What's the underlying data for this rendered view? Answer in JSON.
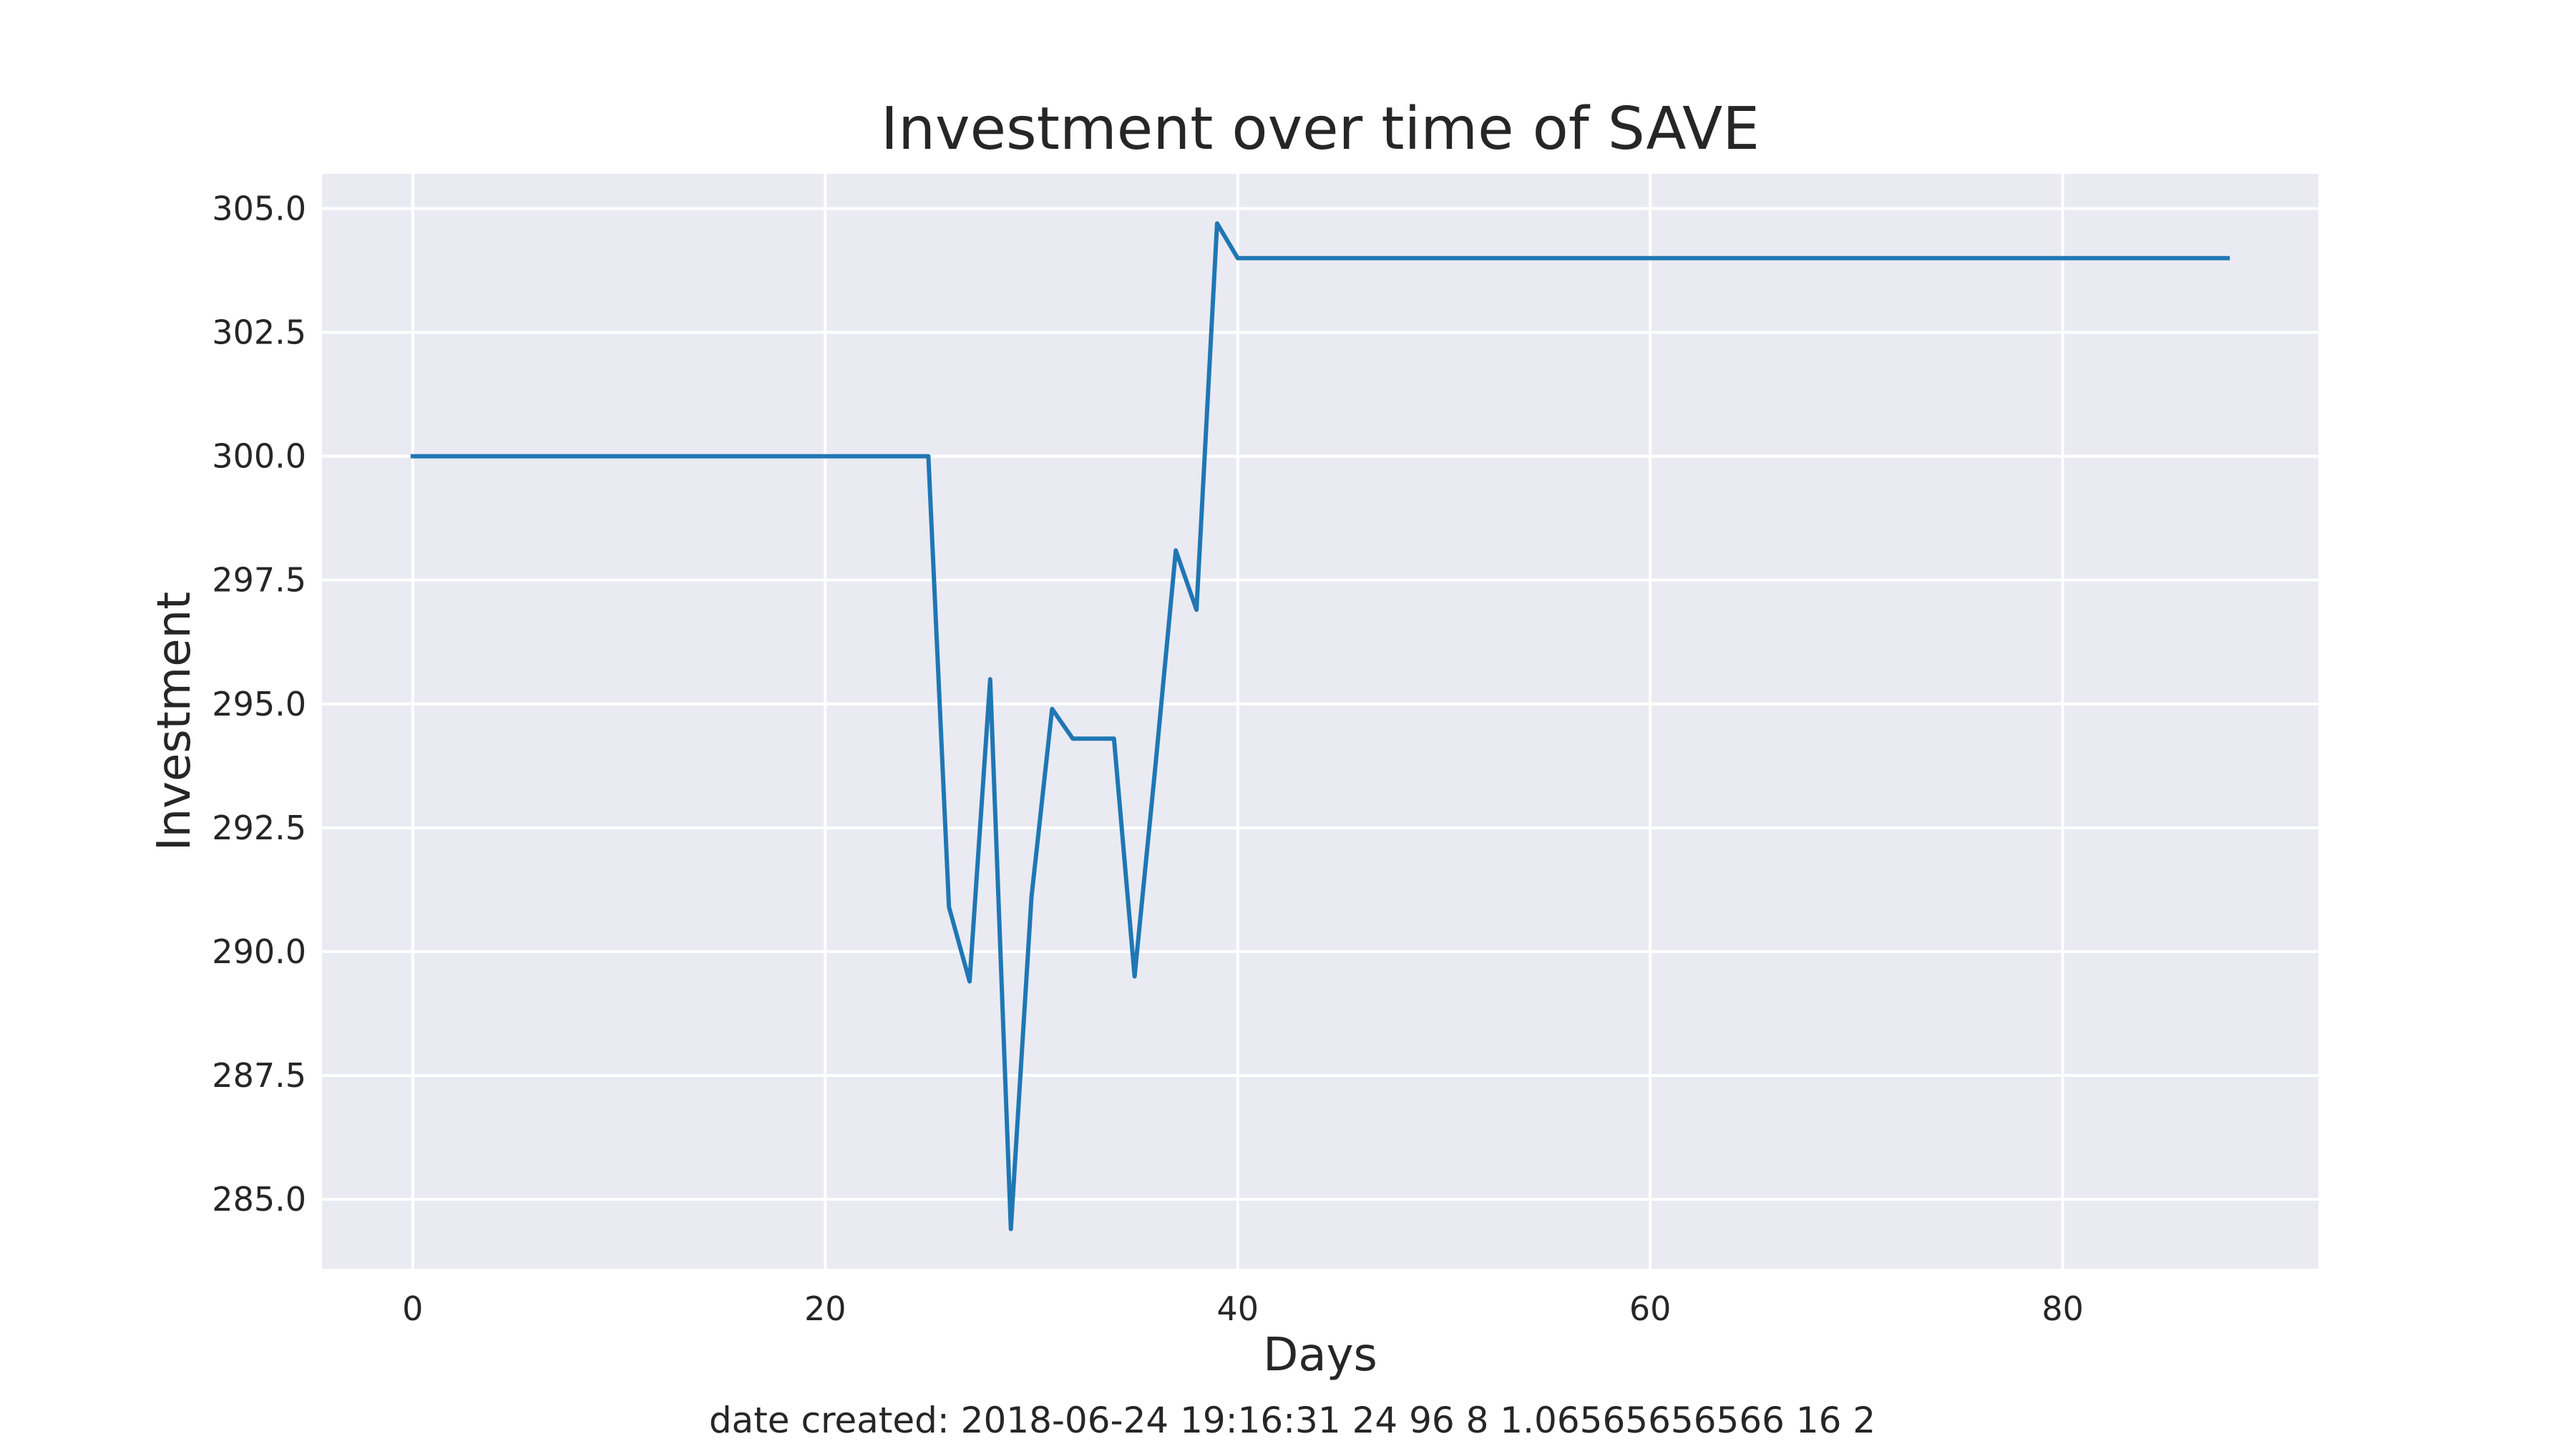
{
  "chart_data": {
    "type": "line",
    "title": "Investment over time of SAVE",
    "xlabel": "Days",
    "ylabel": "Investment",
    "xlim": [
      -4.4,
      92.4
    ],
    "ylim": [
      283.6,
      305.7
    ],
    "xticks": [
      0,
      20,
      40,
      60,
      80
    ],
    "yticks": [
      285.0,
      287.5,
      290.0,
      292.5,
      295.0,
      297.5,
      300.0,
      302.5,
      305.0
    ],
    "grid": true,
    "style": "seaborn-darkgrid",
    "colors": {
      "plot_background": "#eaeaf2",
      "grid": "#ffffff",
      "line": "#1f77b4"
    },
    "series": [
      {
        "x": [
          0,
          1,
          2,
          3,
          4,
          5,
          6,
          7,
          8,
          9,
          10,
          11,
          12,
          13,
          14,
          15,
          16,
          17,
          18,
          19,
          20,
          21,
          22,
          23,
          24,
          25,
          26,
          27,
          28,
          29,
          30,
          31,
          32,
          33,
          34,
          35,
          36,
          37,
          38,
          39,
          40,
          41,
          42,
          43,
          44,
          45,
          46,
          47,
          48,
          49,
          50,
          51,
          52,
          53,
          54,
          55,
          56,
          57,
          58,
          59,
          60,
          61,
          62,
          63,
          64,
          65,
          66,
          67,
          68,
          69,
          70,
          71,
          72,
          73,
          74,
          75,
          76,
          77,
          78,
          79,
          80,
          81,
          82,
          83,
          84,
          85,
          86,
          87,
          88
        ],
        "values": [
          300.0,
          300.0,
          300.0,
          300.0,
          300.0,
          300.0,
          300.0,
          300.0,
          300.0,
          300.0,
          300.0,
          300.0,
          300.0,
          300.0,
          300.0,
          300.0,
          300.0,
          300.0,
          300.0,
          300.0,
          300.0,
          300.0,
          300.0,
          300.0,
          300.0,
          300.0,
          290.9,
          289.4,
          295.5,
          284.4,
          291.1,
          294.9,
          294.3,
          294.3,
          294.3,
          289.5,
          293.7,
          298.1,
          296.9,
          304.7,
          304.0,
          304.0,
          304.0,
          304.0,
          304.0,
          304.0,
          304.0,
          304.0,
          304.0,
          304.0,
          304.0,
          304.0,
          304.0,
          304.0,
          304.0,
          304.0,
          304.0,
          304.0,
          304.0,
          304.0,
          304.0,
          304.0,
          304.0,
          304.0,
          304.0,
          304.0,
          304.0,
          304.0,
          304.0,
          304.0,
          304.0,
          304.0,
          304.0,
          304.0,
          304.0,
          304.0,
          304.0,
          304.0,
          304.0,
          304.0,
          304.0,
          304.0,
          304.0,
          304.0,
          304.0,
          304.0,
          304.0,
          304.0,
          304.0
        ]
      }
    ]
  },
  "footer": {
    "text": "date created: 2018-06-24 19:16:31 24 96 8 1.06565656566 16 2"
  }
}
